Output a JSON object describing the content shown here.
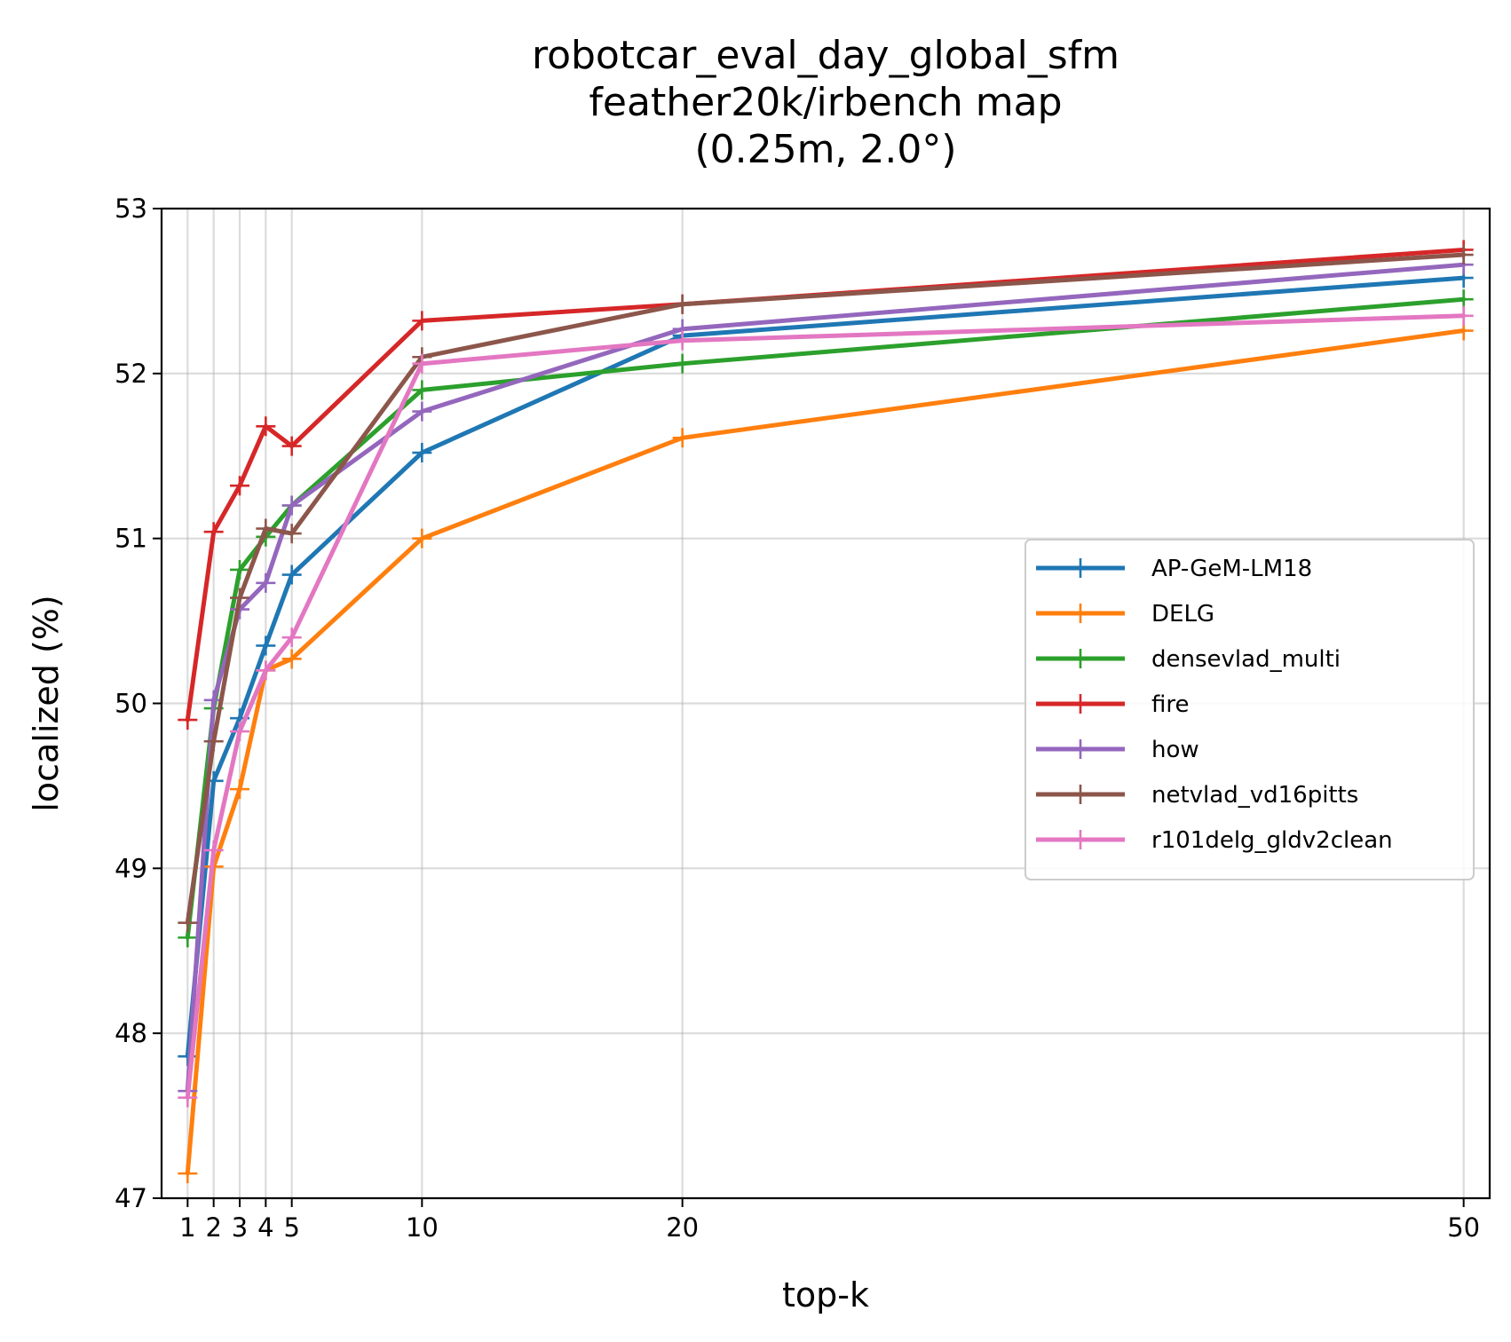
{
  "chart_data": {
    "type": "line",
    "title": [
      "robotcar_eval_day_global_sfm",
      "feather20k/irbench map",
      "(0.25m, 2.0°)"
    ],
    "xlabel": "top-k",
    "ylabel": "localized (%)",
    "x": [
      1,
      2,
      3,
      4,
      5,
      10,
      20,
      50
    ],
    "xticks": [
      1,
      2,
      3,
      4,
      5,
      10,
      20,
      50
    ],
    "xtick_labels": [
      "1",
      "2",
      "3",
      "4",
      "5",
      "10",
      "20",
      "50"
    ],
    "yticks": [
      47,
      48,
      49,
      50,
      51,
      52,
      53
    ],
    "ytick_labels": [
      "47",
      "48",
      "49",
      "50",
      "51",
      "52",
      "53"
    ],
    "xlim": [
      0,
      51
    ],
    "ylim": [
      47,
      53
    ],
    "grid": true,
    "legend_position": "center-right",
    "series": [
      {
        "name": "AP-GeM-LM18",
        "color": "#1f77b4",
        "values": [
          47.86,
          49.53,
          49.91,
          50.35,
          50.78,
          51.52,
          52.23,
          52.58
        ]
      },
      {
        "name": "DELG",
        "color": "#ff7f0e",
        "values": [
          47.15,
          49.01,
          49.48,
          50.2,
          50.27,
          51.0,
          51.61,
          52.26
        ]
      },
      {
        "name": "densevlad_multi",
        "color": "#2ca02c",
        "values": [
          48.58,
          49.97,
          50.81,
          51.01,
          51.2,
          51.9,
          52.06,
          52.45
        ]
      },
      {
        "name": "fire",
        "color": "#d62728",
        "values": [
          49.9,
          51.04,
          51.32,
          51.68,
          51.56,
          52.32,
          52.42,
          52.75
        ]
      },
      {
        "name": "how",
        "color": "#9467bd",
        "values": [
          47.65,
          50.02,
          50.57,
          50.73,
          51.2,
          51.77,
          52.27,
          52.66
        ]
      },
      {
        "name": "netvlad_vd16pitts",
        "color": "#8c564b",
        "values": [
          48.67,
          49.77,
          50.64,
          51.06,
          51.03,
          52.1,
          52.42,
          52.72
        ]
      },
      {
        "name": "r101delg_gldv2clean",
        "color": "#e377c2",
        "values": [
          47.61,
          49.11,
          49.83,
          50.2,
          50.4,
          52.06,
          52.2,
          52.35
        ]
      }
    ]
  }
}
